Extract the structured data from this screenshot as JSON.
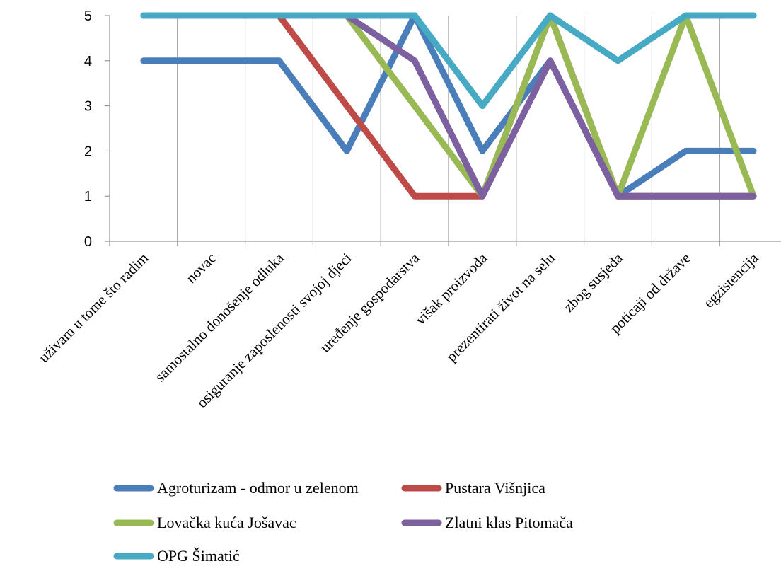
{
  "chart_data": {
    "type": "line",
    "title": "",
    "xlabel": "",
    "ylabel": "",
    "ylim": [
      0,
      5
    ],
    "yticks": [
      0,
      1,
      2,
      3,
      4,
      5
    ],
    "grid": {
      "vertical": true,
      "horizontal": false
    },
    "legend_position": "bottom",
    "categories": [
      "uživam u tome što radim",
      "novac",
      "samostalno donošenje odluka",
      "osiguranje zaposlenosti svojoj djeci",
      "uređenje gospodarstva",
      "višak proizvoda",
      "prezentirati život na selu",
      "zbog susjeda",
      "poticaji od države",
      "egzistencija"
    ],
    "series": [
      {
        "name": "Agroturizam - odmor u zelenom",
        "color": "#4a7ebb",
        "values": [
          4,
          4,
          4,
          2,
          5,
          2,
          4,
          1,
          2,
          2
        ]
      },
      {
        "name": "Pustara Višnjica",
        "color": "#be4b48",
        "values": [
          5,
          5,
          5,
          3,
          1,
          1,
          5,
          1,
          1,
          1
        ]
      },
      {
        "name": "Lovačka kuća Jošavac",
        "color": "#98b954",
        "values": [
          5,
          5,
          5,
          5,
          3,
          1,
          5,
          1,
          5,
          1
        ]
      },
      {
        "name": "Zlatni klas Pitomača",
        "color": "#7d60a0",
        "values": [
          5,
          5,
          5,
          5,
          4,
          1,
          4,
          1,
          1,
          1
        ]
      },
      {
        "name": "OPG Šimatić",
        "color": "#46aac5",
        "values": [
          5,
          5,
          5,
          5,
          5,
          3,
          5,
          4,
          5,
          5
        ]
      }
    ]
  }
}
